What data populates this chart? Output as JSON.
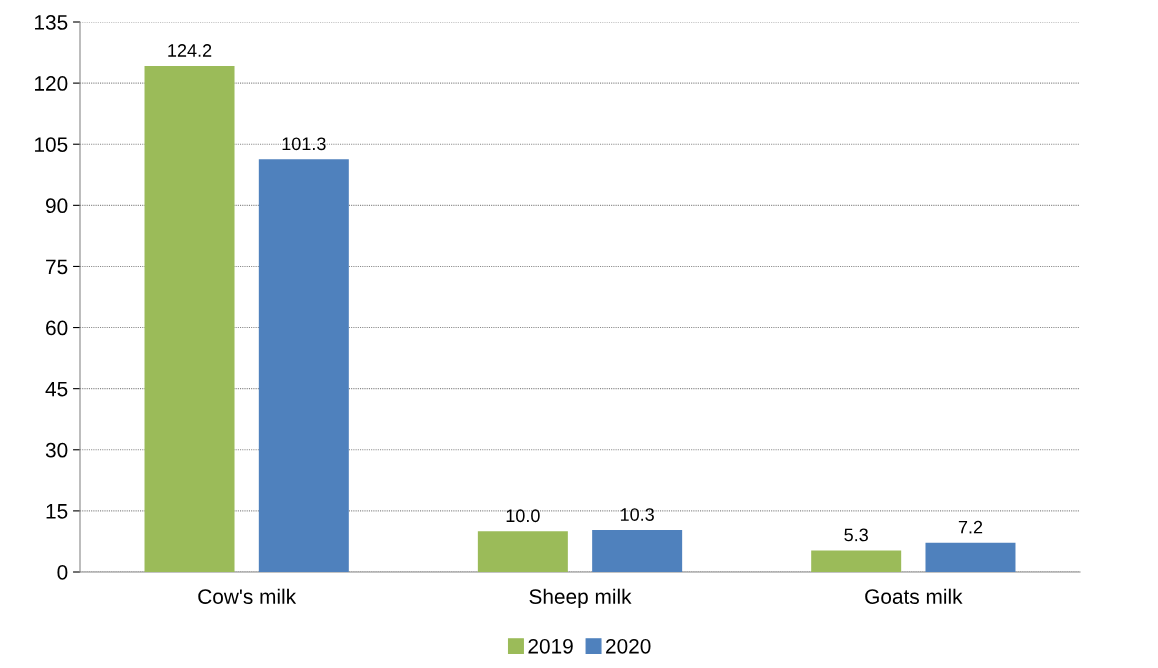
{
  "chart_data": {
    "type": "bar",
    "categories": [
      "Cow's milk",
      "Sheep milk",
      "Goats milk"
    ],
    "series": [
      {
        "name": "2019",
        "color": "#9bbb59",
        "values": [
          124.2,
          10.0,
          5.3
        ],
        "value_labels": [
          "124.2",
          "10.0",
          "5.3"
        ]
      },
      {
        "name": "2020",
        "color": "#4f81bd",
        "values": [
          101.3,
          10.3,
          7.2
        ],
        "value_labels": [
          "101.3",
          "10.3",
          "7.2"
        ]
      }
    ],
    "ylim": [
      0,
      135
    ],
    "yticks": [
      0,
      15,
      30,
      45,
      60,
      75,
      90,
      105,
      120,
      135
    ],
    "grid": "y",
    "legend": "bottom"
  }
}
